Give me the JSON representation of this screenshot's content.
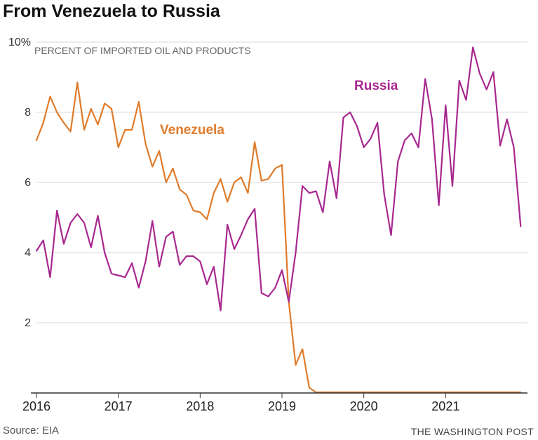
{
  "header": {
    "title": "From Venezuela to Russia"
  },
  "footer": {
    "source": "Source: EIA",
    "credit": "THE WASHINGTON POST"
  },
  "chart_data": {
    "type": "line",
    "title": "From Venezuela to Russia",
    "ylabel": "PERCENT OF IMPORTED OIL AND PRODUCTS",
    "xlabel": "",
    "xlim": [
      2016.0,
      2022.0
    ],
    "ylim": [
      0,
      10
    ],
    "yticks": [
      2,
      4,
      6,
      8,
      10
    ],
    "ytick_labels": [
      "2",
      "4",
      "6",
      "8",
      "10%"
    ],
    "xticks": [
      2016,
      2017,
      2018,
      2019,
      2020,
      2021
    ],
    "xtick_labels": [
      "2016",
      "2017",
      "2018",
      "2019",
      "2020",
      "2021"
    ],
    "grid": true,
    "legend": "inline labels",
    "series": [
      {
        "name": "Venezuela",
        "color": "#e07b2a",
        "x": [
          2016.0,
          2016.083,
          2016.167,
          2016.25,
          2016.333,
          2016.417,
          2016.5,
          2016.583,
          2016.667,
          2016.75,
          2016.833,
          2016.917,
          2017.0,
          2017.083,
          2017.167,
          2017.25,
          2017.333,
          2017.417,
          2017.5,
          2017.583,
          2017.667,
          2017.75,
          2017.833,
          2017.917,
          2018.0,
          2018.083,
          2018.167,
          2018.25,
          2018.333,
          2018.417,
          2018.5,
          2018.583,
          2018.667,
          2018.75,
          2018.833,
          2018.917,
          2019.0,
          2019.083,
          2019.167,
          2019.25,
          2019.333,
          2019.417,
          2019.5,
          2019.583,
          2019.667,
          2019.75,
          2019.833,
          2019.917,
          2020.0,
          2020.083,
          2020.167,
          2020.25,
          2020.333,
          2020.417,
          2020.5,
          2020.583,
          2020.667,
          2020.75,
          2020.833,
          2020.917,
          2021.0,
          2021.083,
          2021.167,
          2021.25,
          2021.333,
          2021.417,
          2021.5,
          2021.583,
          2021.667,
          2021.75,
          2021.833,
          2021.917
        ],
        "values": [
          7.2,
          7.7,
          8.45,
          8.0,
          7.7,
          7.45,
          8.85,
          7.5,
          8.1,
          7.65,
          8.25,
          8.1,
          7.0,
          7.5,
          7.5,
          8.3,
          7.1,
          6.45,
          6.9,
          6.0,
          6.4,
          5.8,
          5.65,
          5.2,
          5.15,
          4.95,
          5.7,
          6.1,
          5.45,
          6.0,
          6.15,
          5.7,
          7.15,
          6.05,
          6.1,
          6.4,
          6.5,
          2.6,
          0.8,
          1.25,
          0.15,
          0.02,
          0.02,
          0.02,
          0.02,
          0.02,
          0.02,
          0.02,
          0.02,
          0.02,
          0.02,
          0.02,
          0.02,
          0.02,
          0.02,
          0.02,
          0.02,
          0.02,
          0.02,
          0.02,
          0.02,
          0.02,
          0.02,
          0.02,
          0.02,
          0.02,
          0.02,
          0.02,
          0.02,
          0.02,
          0.02,
          0.02
        ]
      },
      {
        "name": "Russia",
        "color": "#a8288f",
        "x": [
          2016.0,
          2016.083,
          2016.167,
          2016.25,
          2016.333,
          2016.417,
          2016.5,
          2016.583,
          2016.667,
          2016.75,
          2016.833,
          2016.917,
          2017.0,
          2017.083,
          2017.167,
          2017.25,
          2017.333,
          2017.417,
          2017.5,
          2017.583,
          2017.667,
          2017.75,
          2017.833,
          2017.917,
          2018.0,
          2018.083,
          2018.167,
          2018.25,
          2018.333,
          2018.417,
          2018.5,
          2018.583,
          2018.667,
          2018.75,
          2018.833,
          2018.917,
          2019.0,
          2019.083,
          2019.167,
          2019.25,
          2019.333,
          2019.417,
          2019.5,
          2019.583,
          2019.667,
          2019.75,
          2019.833,
          2019.917,
          2020.0,
          2020.083,
          2020.167,
          2020.25,
          2020.333,
          2020.417,
          2020.5,
          2020.583,
          2020.667,
          2020.75,
          2020.833,
          2020.917,
          2021.0,
          2021.083,
          2021.167,
          2021.25,
          2021.333,
          2021.417,
          2021.5,
          2021.583,
          2021.667,
          2021.75,
          2021.833,
          2021.917
        ],
        "values": [
          4.05,
          4.35,
          3.3,
          5.2,
          4.25,
          4.85,
          5.1,
          4.85,
          4.15,
          5.05,
          4.0,
          3.4,
          3.35,
          3.3,
          3.7,
          3.0,
          3.75,
          4.9,
          3.6,
          4.45,
          4.6,
          3.65,
          3.9,
          3.9,
          3.75,
          3.1,
          3.6,
          2.35,
          4.8,
          4.1,
          4.5,
          4.95,
          5.25,
          2.85,
          2.75,
          3.0,
          3.5,
          2.6,
          4.0,
          5.9,
          5.7,
          5.75,
          5.15,
          6.6,
          5.55,
          7.85,
          8.0,
          7.6,
          7.0,
          7.25,
          7.7,
          5.65,
          4.5,
          6.6,
          7.2,
          7.4,
          7.0,
          8.95,
          7.8,
          5.35,
          8.2,
          5.9,
          8.9,
          8.35,
          9.85,
          9.1,
          8.65,
          9.15,
          7.05,
          7.8,
          7.0,
          4.75
        ]
      }
    ]
  }
}
